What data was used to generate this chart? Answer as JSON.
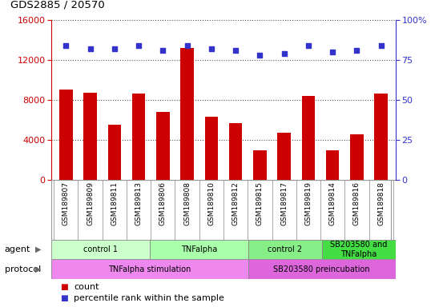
{
  "title": "GDS2885 / 20570",
  "samples": [
    "GSM189807",
    "GSM189809",
    "GSM189811",
    "GSM189813",
    "GSM189806",
    "GSM189808",
    "GSM189810",
    "GSM189812",
    "GSM189815",
    "GSM189817",
    "GSM189819",
    "GSM189814",
    "GSM189816",
    "GSM189818"
  ],
  "counts": [
    9000,
    8700,
    5500,
    8600,
    6800,
    13200,
    6300,
    5700,
    2900,
    4700,
    8400,
    2900,
    4500,
    8600
  ],
  "percentile": [
    84,
    82,
    82,
    84,
    81,
    84,
    82,
    81,
    78,
    79,
    84,
    80,
    81,
    84
  ],
  "ylim_left": [
    0,
    16000
  ],
  "ylim_right": [
    0,
    100
  ],
  "yticks_left": [
    0,
    4000,
    8000,
    12000,
    16000
  ],
  "yticks_right": [
    0,
    25,
    50,
    75,
    100
  ],
  "bar_color": "#cc0000",
  "dot_color": "#3333cc",
  "agent_groups": [
    {
      "label": "control 1",
      "start": 0,
      "end": 4,
      "color": "#ccffcc"
    },
    {
      "label": "TNFalpha",
      "start": 4,
      "end": 8,
      "color": "#aaffaa"
    },
    {
      "label": "control 2",
      "start": 8,
      "end": 11,
      "color": "#88ee88"
    },
    {
      "label": "SB203580 and\nTNFalpha",
      "start": 11,
      "end": 14,
      "color": "#44dd44"
    }
  ],
  "protocol_groups": [
    {
      "label": "TNFalpha stimulation",
      "start": 0,
      "end": 8,
      "color": "#ee88ee"
    },
    {
      "label": "SB203580 preincubation",
      "start": 8,
      "end": 14,
      "color": "#dd66dd"
    }
  ],
  "agent_row_label": "agent",
  "protocol_row_label": "protocol",
  "legend_count_label": "count",
  "legend_percentile_label": "percentile rank within the sample",
  "grid_color": "#555555",
  "bg_color": "#ffffff",
  "tick_area_bg": "#d8d8d8"
}
